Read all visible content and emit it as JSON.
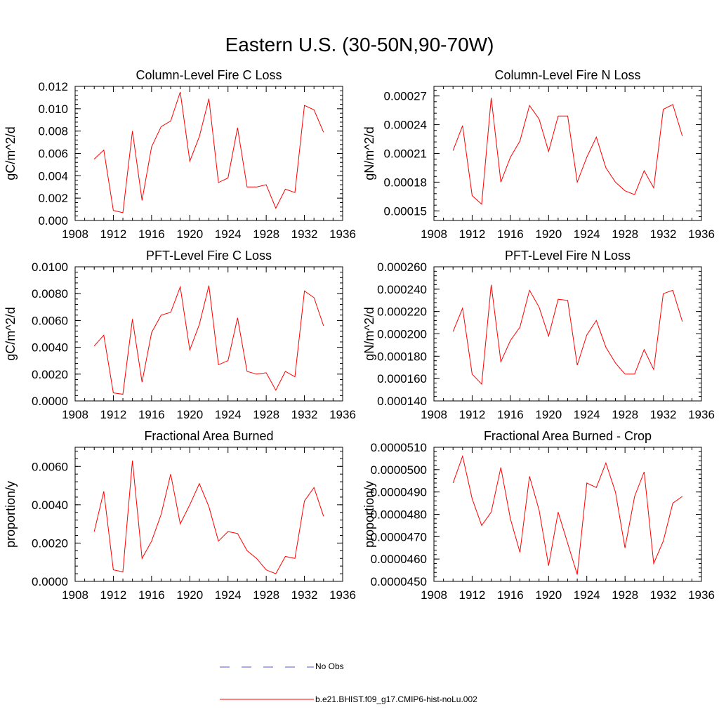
{
  "title": "Eastern U.S. (30-50N,90-70W)",
  "colors": {
    "model": "#ff0000",
    "obs": "#5555cc",
    "axis": "#000000"
  },
  "legend": {
    "obs_label": "No Obs",
    "model_label": "b.e21.BHIST.f09_g17.CMIP6-hist-noLu.002"
  },
  "chart_data": [
    {
      "type": "line",
      "title": "Column-Level Fire C Loss",
      "ylabel": "gC/m^2/d",
      "xlim": [
        1908,
        1936
      ],
      "xticks": [
        "1908",
        "1912",
        "1916",
        "1920",
        "1924",
        "1928",
        "1932",
        "1936"
      ],
      "ylim": [
        0,
        0.012
      ],
      "yticks": [
        "0.000",
        "0.002",
        "0.004",
        "0.006",
        "0.008",
        "0.010",
        "0.012"
      ],
      "x": [
        1910,
        1911,
        1912,
        1913,
        1914,
        1915,
        1916,
        1917,
        1918,
        1919,
        1920,
        1921,
        1922,
        1923,
        1924,
        1925,
        1926,
        1927,
        1928,
        1929,
        1930,
        1931,
        1932,
        1933,
        1934
      ],
      "series": [
        {
          "values": [
            0.0055,
            0.0063,
            0.0009,
            0.0007,
            0.008,
            0.0018,
            0.0066,
            0.0084,
            0.0089,
            0.0115,
            0.0053,
            0.0075,
            0.0109,
            0.0034,
            0.0038,
            0.0083,
            0.003,
            0.003,
            0.0032,
            0.0011,
            0.0028,
            0.0025,
            0.0103,
            0.0099,
            0.0079
          ]
        }
      ]
    },
    {
      "type": "line",
      "title": "Column-Level Fire N Loss",
      "ylabel": "gN/m^2/d",
      "xlim": [
        1908,
        1936
      ],
      "xticks": [
        "1908",
        "1912",
        "1916",
        "1920",
        "1924",
        "1928",
        "1932",
        "1936"
      ],
      "ylim": [
        0.00014,
        0.00028
      ],
      "yticks": [
        "0.00015",
        "0.00018",
        "0.00021",
        "0.00024",
        "0.00027"
      ],
      "x": [
        1910,
        1911,
        1912,
        1913,
        1914,
        1915,
        1916,
        1917,
        1918,
        1919,
        1920,
        1921,
        1922,
        1923,
        1924,
        1925,
        1926,
        1927,
        1928,
        1929,
        1930,
        1931,
        1932,
        1933,
        1934
      ],
      "series": [
        {
          "values": [
            0.000213,
            0.000239,
            0.000166,
            0.000157,
            0.000268,
            0.00018,
            0.000206,
            0.000223,
            0.00026,
            0.000246,
            0.000212,
            0.000249,
            0.000249,
            0.00018,
            0.000206,
            0.000227,
            0.000195,
            0.00018,
            0.000171,
            0.000167,
            0.000192,
            0.000174,
            0.000256,
            0.000261,
            0.000228
          ]
        }
      ]
    },
    {
      "type": "line",
      "title": "PFT-Level Fire C Loss",
      "ylabel": "gC/m^2/d",
      "xlim": [
        1908,
        1936
      ],
      "xticks": [
        "1908",
        "1912",
        "1916",
        "1920",
        "1924",
        "1928",
        "1932",
        "1936"
      ],
      "ylim": [
        0,
        0.01
      ],
      "yticks": [
        "0.0000",
        "0.0020",
        "0.0040",
        "0.0060",
        "0.0080",
        "0.0100"
      ],
      "x": [
        1910,
        1911,
        1912,
        1913,
        1914,
        1915,
        1916,
        1917,
        1918,
        1919,
        1920,
        1921,
        1922,
        1923,
        1924,
        1925,
        1926,
        1927,
        1928,
        1929,
        1930,
        1931,
        1932,
        1933,
        1934
      ],
      "series": [
        {
          "values": [
            0.0041,
            0.0049,
            0.0006,
            0.0005,
            0.0061,
            0.0014,
            0.0051,
            0.0064,
            0.0066,
            0.0085,
            0.0038,
            0.0057,
            0.0086,
            0.0027,
            0.003,
            0.0062,
            0.0022,
            0.002,
            0.0021,
            0.0008,
            0.0022,
            0.0018,
            0.0082,
            0.0077,
            0.0056
          ]
        }
      ]
    },
    {
      "type": "line",
      "title": "PFT-Level Fire N Loss",
      "ylabel": "gN/m^2/d",
      "xlim": [
        1908,
        1936
      ],
      "xticks": [
        "1908",
        "1912",
        "1916",
        "1920",
        "1924",
        "1928",
        "1932",
        "1936"
      ],
      "ylim": [
        0.00014,
        0.00026
      ],
      "yticks": [
        "0.000140",
        "0.000160",
        "0.000180",
        "0.000200",
        "0.000220",
        "0.000240",
        "0.000260"
      ],
      "x": [
        1910,
        1911,
        1912,
        1913,
        1914,
        1915,
        1916,
        1917,
        1918,
        1919,
        1920,
        1921,
        1922,
        1923,
        1924,
        1925,
        1926,
        1927,
        1928,
        1929,
        1930,
        1931,
        1932,
        1933,
        1934
      ],
      "series": [
        {
          "values": [
            0.000202,
            0.000223,
            0.000164,
            0.000155,
            0.000244,
            0.000175,
            0.000194,
            0.000206,
            0.000239,
            0.000224,
            0.000198,
            0.000231,
            0.00023,
            0.000172,
            0.000199,
            0.000212,
            0.000188,
            0.000174,
            0.000164,
            0.000164,
            0.000186,
            0.000168,
            0.000236,
            0.000239,
            0.000211
          ]
        }
      ]
    },
    {
      "type": "line",
      "title": "Fractional Area Burned",
      "ylabel": "proportion/y",
      "xlim": [
        1908,
        1936
      ],
      "xticks": [
        "1908",
        "1912",
        "1916",
        "1920",
        "1924",
        "1928",
        "1932",
        "1936"
      ],
      "ylim": [
        0,
        0.007
      ],
      "yticks": [
        "0.0000",
        "0.0020",
        "0.0040",
        "0.0060"
      ],
      "x": [
        1910,
        1911,
        1912,
        1913,
        1914,
        1915,
        1916,
        1917,
        1918,
        1919,
        1920,
        1921,
        1922,
        1923,
        1924,
        1925,
        1926,
        1927,
        1928,
        1929,
        1930,
        1931,
        1932,
        1933,
        1934
      ],
      "series": [
        {
          "values": [
            0.0026,
            0.0047,
            0.0006,
            0.0005,
            0.0063,
            0.0012,
            0.0021,
            0.0035,
            0.0056,
            0.003,
            0.004,
            0.0051,
            0.0039,
            0.0021,
            0.0026,
            0.0025,
            0.0016,
            0.0012,
            0.0006,
            0.0004,
            0.0013,
            0.0012,
            0.0042,
            0.0049,
            0.0034
          ]
        }
      ]
    },
    {
      "type": "line",
      "title": "Fractional Area Burned - Crop",
      "ylabel": "proportion/y",
      "xlim": [
        1908,
        1936
      ],
      "xticks": [
        "1908",
        "1912",
        "1916",
        "1920",
        "1924",
        "1928",
        "1932",
        "1936"
      ],
      "ylim": [
        4.5e-05,
        5.1e-05
      ],
      "yticks": [
        "0.0000450",
        "0.0000460",
        "0.0000470",
        "0.0000480",
        "0.0000490",
        "0.0000500",
        "0.0000510"
      ],
      "x": [
        1910,
        1911,
        1912,
        1913,
        1914,
        1915,
        1916,
        1917,
        1918,
        1919,
        1920,
        1921,
        1922,
        1923,
        1924,
        1925,
        1926,
        1927,
        1928,
        1929,
        1930,
        1931,
        1932,
        1933,
        1934
      ],
      "series": [
        {
          "values": [
            4.94e-05,
            5.06e-05,
            4.87e-05,
            4.75e-05,
            4.81e-05,
            5.01e-05,
            4.78e-05,
            4.63e-05,
            4.97e-05,
            4.82e-05,
            4.57e-05,
            4.81e-05,
            4.67e-05,
            4.53e-05,
            4.94e-05,
            4.92e-05,
            5.03e-05,
            4.9e-05,
            4.65e-05,
            4.88e-05,
            4.99e-05,
            4.58e-05,
            4.68e-05,
            4.85e-05,
            4.88e-05
          ]
        }
      ]
    }
  ]
}
